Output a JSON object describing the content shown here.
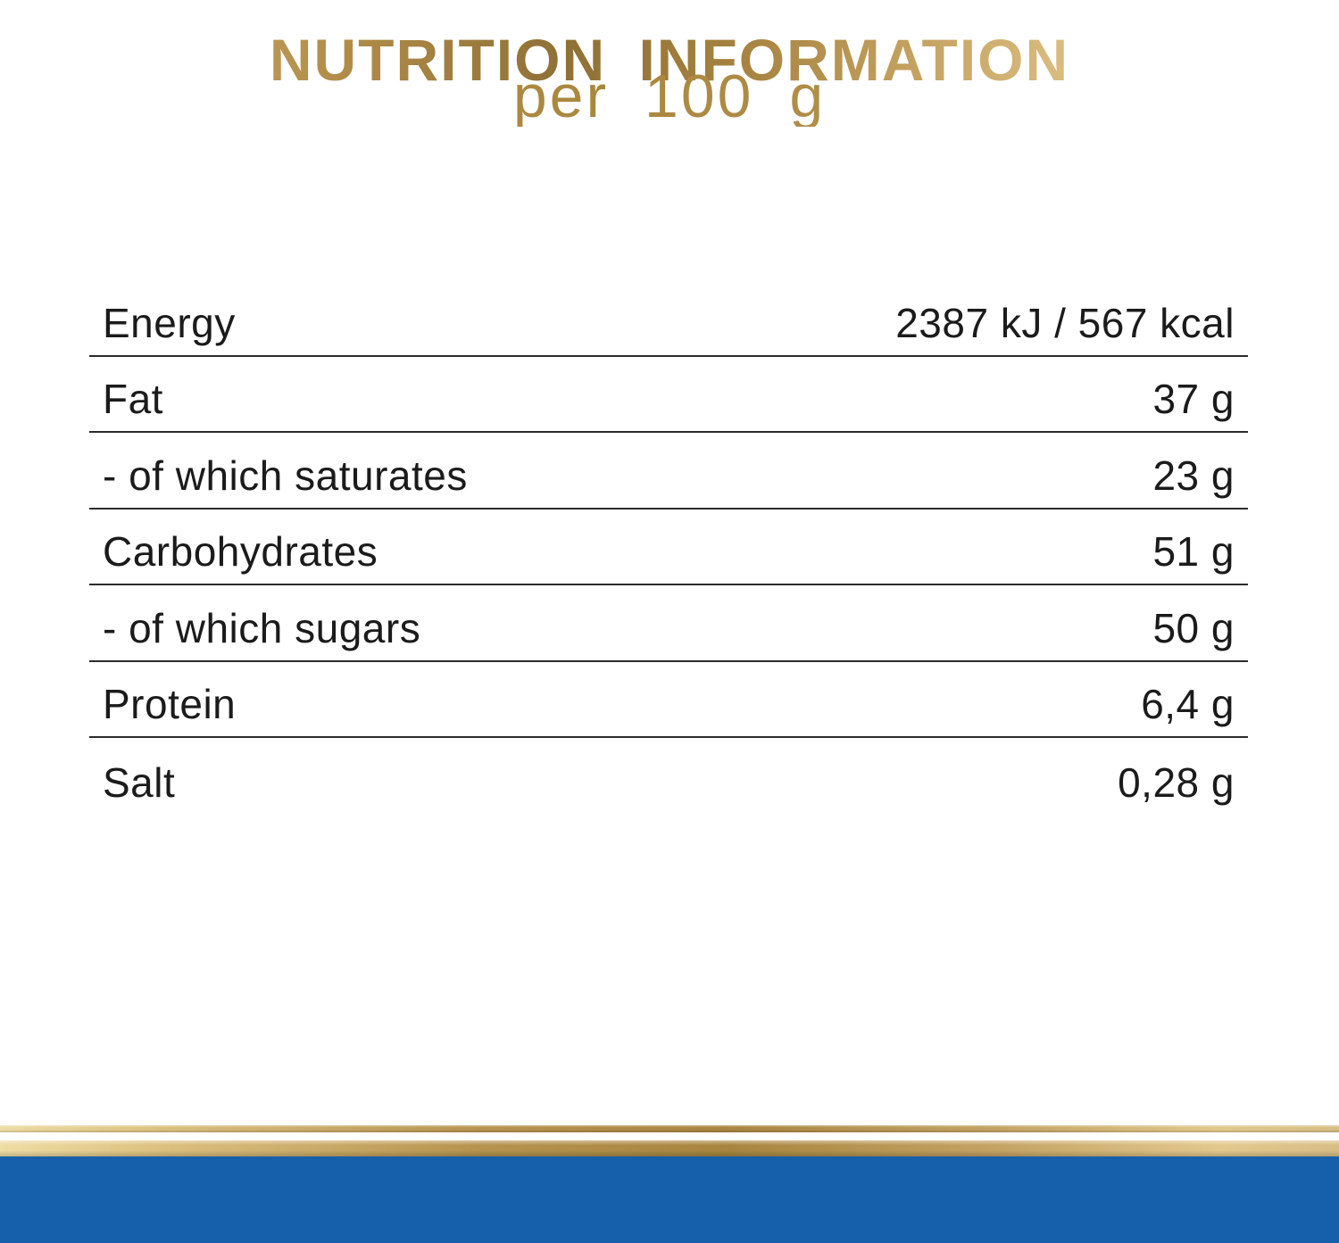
{
  "header": {
    "title": "NUTRITION INFORMATION",
    "subtitle": "per 100 g"
  },
  "table": {
    "rows": [
      {
        "label": "Energy",
        "value": "2387 kJ / 567 kcal"
      },
      {
        "label": "Fat",
        "value": "37 g"
      },
      {
        "label": "- of which saturates",
        "value": "23 g"
      },
      {
        "label": "Carbohydrates",
        "value": "51 g"
      },
      {
        "label": "- of which sugars",
        "value": "50 g"
      },
      {
        "label": "Protein",
        "value": "6,4 g"
      },
      {
        "label": "Salt",
        "value": "0,28 g"
      }
    ]
  },
  "colors": {
    "gold": "#b3914f",
    "gold_dark": "#8f7036",
    "gold_light": "#e9d29a",
    "blue": "#1660ab",
    "text": "#1b1b1b"
  }
}
